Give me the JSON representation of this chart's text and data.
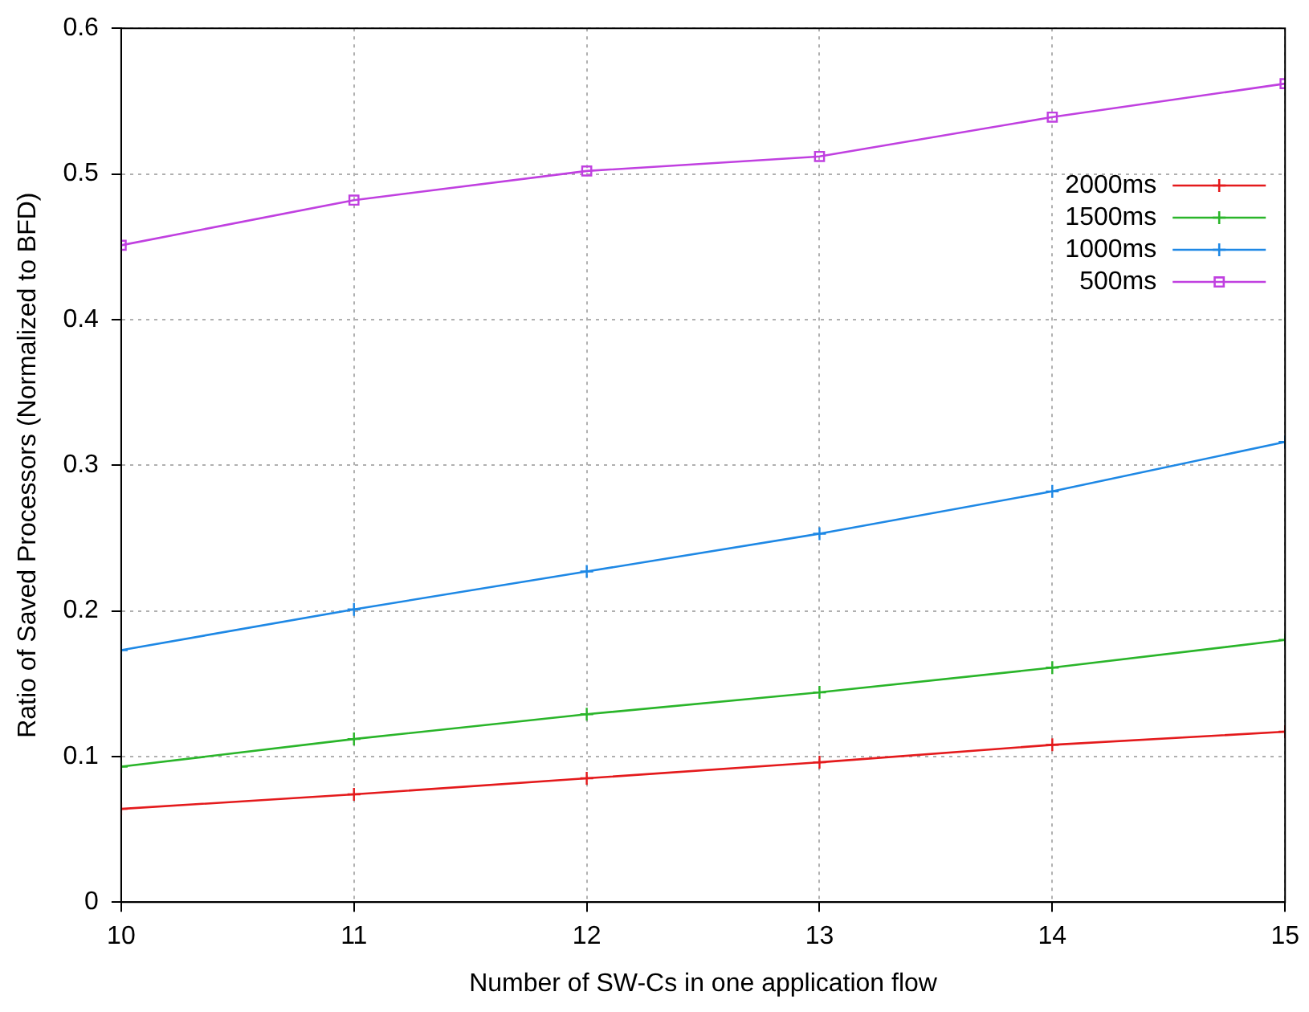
{
  "chart_data": {
    "type": "line",
    "xlabel": "Number of SW-Cs in one application flow",
    "ylabel": "Ratio of Saved Processors (Normalized to BFD)",
    "x": [
      10,
      11,
      12,
      13,
      14,
      15
    ],
    "series": [
      {
        "name": "2000ms",
        "color": "#e41a1c",
        "marker": "cross",
        "values": [
          0.064,
          0.074,
          0.085,
          0.096,
          0.108,
          0.117
        ]
      },
      {
        "name": "1500ms",
        "color": "#2ab52a",
        "marker": "cross",
        "values": [
          0.093,
          0.112,
          0.129,
          0.144,
          0.161,
          0.18
        ]
      },
      {
        "name": "1000ms",
        "color": "#1e88e5",
        "marker": "cross",
        "values": [
          0.173,
          0.201,
          0.227,
          0.253,
          0.282,
          0.316
        ]
      },
      {
        "name": "500ms",
        "color": "#c040e0",
        "marker": "square",
        "values": [
          0.451,
          0.482,
          0.502,
          0.512,
          0.539,
          0.562
        ]
      }
    ],
    "xlim": [
      10,
      15
    ],
    "xticks": [
      10,
      11,
      12,
      13,
      14,
      15
    ],
    "ylim": [
      0,
      0.6
    ],
    "yticks": [
      0,
      0.1,
      0.2,
      0.3,
      0.4,
      0.5,
      0.6
    ],
    "grid": true,
    "legend": "right",
    "line_style": "solid"
  }
}
